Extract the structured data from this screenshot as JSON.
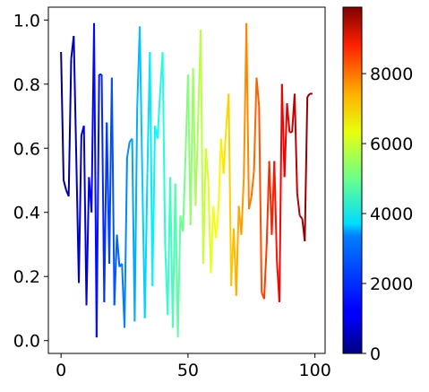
{
  "chart_data": {
    "type": "line",
    "title": "",
    "xlabel": "",
    "ylabel": "",
    "xlim": [
      -5,
      104
    ],
    "ylim": [
      -0.04,
      1.04
    ],
    "xticks": [
      "0",
      "50",
      "100"
    ],
    "yticks": [
      "0.0",
      "0.2",
      "0.4",
      "0.6",
      "0.8",
      "1.0"
    ],
    "grid": false,
    "colormap": "jet",
    "colorbar": {
      "range": [
        0,
        9900
      ],
      "ticks": [
        "0",
        "2000",
        "4000",
        "6000",
        "8000"
      ]
    },
    "series": [
      {
        "x": [
          0,
          1,
          2,
          3,
          4,
          5,
          6,
          7,
          8,
          9,
          10,
          11,
          12,
          13,
          14,
          15,
          16,
          17,
          18,
          19,
          20,
          21,
          22,
          23,
          24,
          25,
          26,
          27,
          28,
          29,
          30,
          31,
          32,
          33,
          34,
          35,
          36,
          37,
          38,
          39,
          40,
          41,
          42,
          43,
          44,
          45,
          46,
          47,
          48,
          49,
          50,
          51,
          52,
          53,
          54,
          55,
          56,
          57,
          58,
          59,
          60,
          61,
          62,
          63,
          64,
          65,
          66,
          67,
          68,
          69,
          70,
          71,
          72,
          73,
          74,
          75,
          76,
          77,
          78,
          79,
          80,
          81,
          82,
          83,
          84,
          85,
          86,
          87,
          88,
          89,
          90,
          91,
          92,
          93,
          94,
          95,
          96,
          97,
          98,
          99
        ],
        "y": [
          0.9,
          0.5,
          0.47,
          0.45,
          0.88,
          0.95,
          0.57,
          0.18,
          0.64,
          0.67,
          0.11,
          0.51,
          0.4,
          0.99,
          0.01,
          0.83,
          0.83,
          0.12,
          0.68,
          0.24,
          0.82,
          0.11,
          0.33,
          0.23,
          0.24,
          0.04,
          0.57,
          0.62,
          0.63,
          0.06,
          0.73,
          0.98,
          0.51,
          0.07,
          0.52,
          0.9,
          0.17,
          0.67,
          0.63,
          0.77,
          0.9,
          0.3,
          0.08,
          0.51,
          0.04,
          0.49,
          0.01,
          0.39,
          0.34,
          0.57,
          0.83,
          0.36,
          0.85,
          0.42,
          0.69,
          0.97,
          0.24,
          0.6,
          0.5,
          0.21,
          0.42,
          0.32,
          0.41,
          0.63,
          0.52,
          0.66,
          0.77,
          0.17,
          0.35,
          0.14,
          0.42,
          0.33,
          0.51,
          0.99,
          0.41,
          0.45,
          0.53,
          0.82,
          0.73,
          0.15,
          0.13,
          0.3,
          0.56,
          0.33,
          0.56,
          0.25,
          0.12,
          0.8,
          0.51,
          0.74,
          0.65,
          0.65,
          0.77,
          0.46,
          0.39,
          0.38,
          0.31,
          0.76,
          0.77,
          0.77
        ]
      }
    ]
  }
}
